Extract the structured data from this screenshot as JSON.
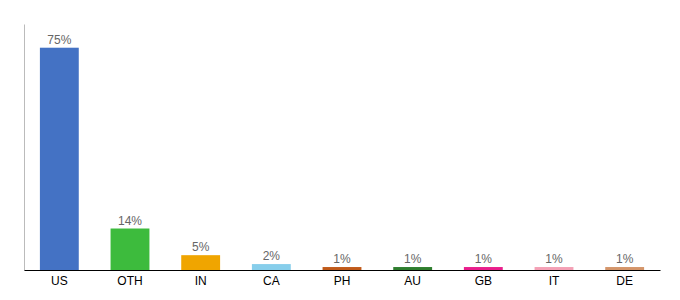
{
  "chart_data": {
    "type": "bar",
    "categories": [
      "US",
      "OTH",
      "IN",
      "CA",
      "PH",
      "AU",
      "GB",
      "IT",
      "DE"
    ],
    "values": [
      75,
      14,
      5,
      2,
      1,
      1,
      1,
      1,
      1
    ],
    "value_labels": [
      "75%",
      "14%",
      "5%",
      "2%",
      "1%",
      "1%",
      "1%",
      "1%",
      "1%"
    ],
    "colors": [
      "#4472c4",
      "#3dbb3d",
      "#f0a500",
      "#87ceeb",
      "#c05a1a",
      "#2e7d2e",
      "#e91e8c",
      "#f4a0b5",
      "#d4956a"
    ],
    "ylim": [
      0,
      83
    ],
    "grid": false,
    "data_labels": true,
    "tick_labels": "x"
  }
}
